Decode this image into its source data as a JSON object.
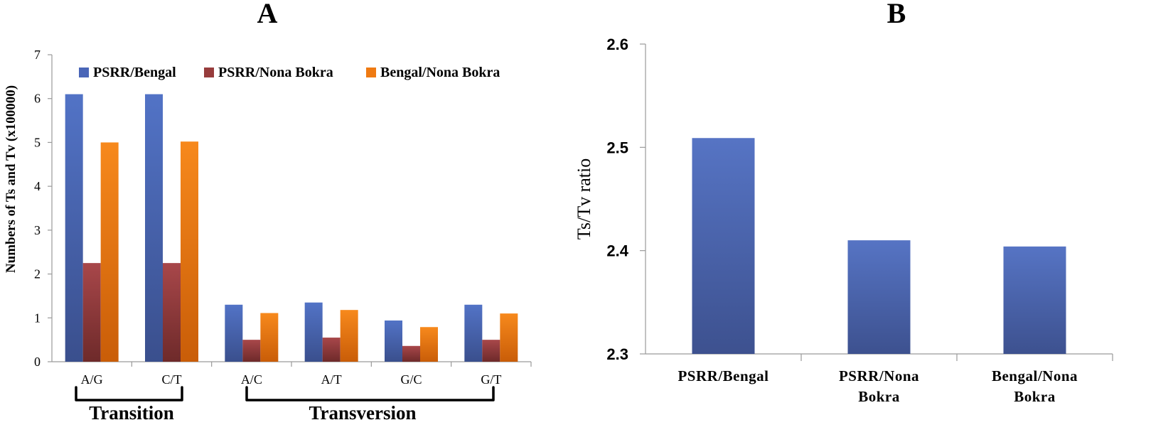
{
  "chart_data": [
    {
      "panel": "A",
      "type": "bar",
      "ylabel": "Numbers of Ts and Tv (x100000)",
      "ylim": [
        0,
        7
      ],
      "yticks": [
        "0",
        "1",
        "2",
        "3",
        "4",
        "5",
        "6",
        "7"
      ],
      "categories": [
        "A/G",
        "C/T",
        "A/C",
        "A/T",
        "G/C",
        "G/T"
      ],
      "series": [
        {
          "name": "PSRR/Bengal",
          "color": "#4a66b8",
          "values": [
            6.1,
            6.1,
            1.3,
            1.35,
            0.94,
            1.3
          ]
        },
        {
          "name": "PSRR/Nona Bokra",
          "color": "#973c3c",
          "values": [
            2.25,
            2.25,
            0.5,
            0.55,
            0.36,
            0.5
          ]
        },
        {
          "name": "Bengal/Nona Bokra",
          "color": "#ef7a12",
          "values": [
            5.0,
            5.02,
            1.11,
            1.18,
            0.79,
            1.1
          ]
        }
      ],
      "groups": [
        {
          "label": "Transition",
          "from": 0,
          "to": 1
        },
        {
          "label": "Transversion",
          "from": 2,
          "to": 5
        }
      ],
      "legend": "top"
    },
    {
      "panel": "B",
      "type": "bar",
      "ylabel": "Ts/Tv ratio",
      "ylim": [
        2.3,
        2.6
      ],
      "yticks": [
        "2.3",
        "2.4",
        "2.5",
        "2.6"
      ],
      "categories": [
        [
          "PSRR/Bengal"
        ],
        [
          "PSRR/Nona",
          "Bokra"
        ],
        [
          "Bengal/Nona",
          "Bokra"
        ]
      ],
      "values": [
        2.509,
        2.41,
        2.404
      ],
      "color": "#4a66b8"
    }
  ]
}
